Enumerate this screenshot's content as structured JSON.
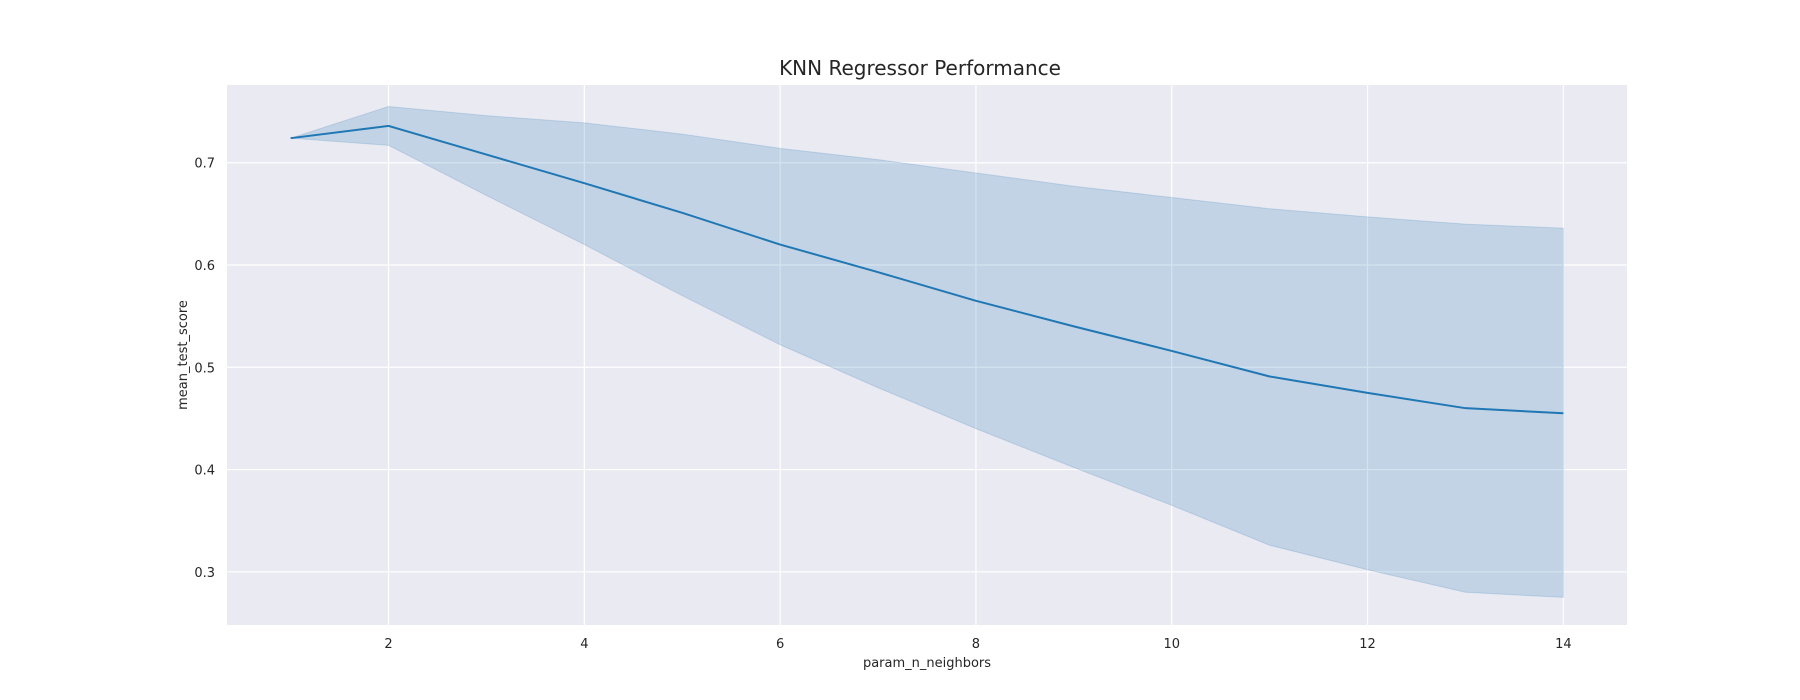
{
  "chart_data": {
    "type": "line",
    "title": "KNN Regressor Performance",
    "xlabel": "param_n_neighbors",
    "ylabel": "mean_test_score",
    "xlim": [
      0.35,
      14.65
    ],
    "ylim": [
      0.248,
      0.776
    ],
    "xticks": [
      2,
      4,
      6,
      8,
      10,
      12,
      14
    ],
    "yticks": [
      0.3,
      0.4,
      0.5,
      0.6,
      0.7
    ],
    "grid": true,
    "legend": "none",
    "colors": {
      "background": "#eaeaf2",
      "grid": "#ffffff",
      "line": "#1f77b4",
      "band": "#1f77b4"
    },
    "series": [
      {
        "x": [
          1,
          2,
          3,
          4,
          5,
          6,
          7,
          8,
          9,
          10,
          11,
          12,
          13,
          14
        ],
        "y": [
          0.724,
          0.736,
          0.708,
          0.68,
          0.651,
          0.62,
          0.593,
          0.565,
          0.54,
          0.516,
          0.491,
          0.475,
          0.46,
          0.455
        ],
        "lower": [
          0.724,
          0.717,
          0.668,
          0.62,
          0.57,
          0.522,
          0.48,
          0.44,
          0.402,
          0.365,
          0.326,
          0.302,
          0.28,
          0.275
        ],
        "upper": [
          0.724,
          0.755,
          0.746,
          0.739,
          0.728,
          0.714,
          0.703,
          0.69,
          0.677,
          0.666,
          0.655,
          0.647,
          0.64,
          0.636
        ]
      }
    ]
  }
}
